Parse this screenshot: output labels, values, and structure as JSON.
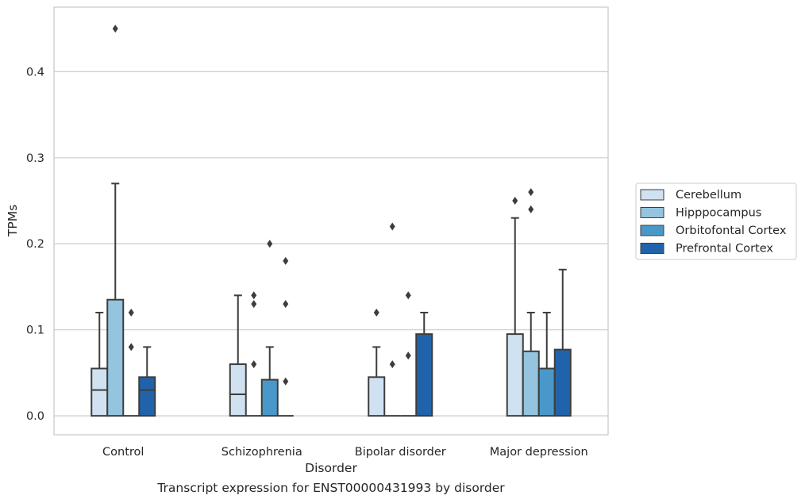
{
  "chart_data": {
    "type": "box",
    "title": "",
    "xlabel": "Disorder",
    "ylabel": "TPMs",
    "caption": "Transcript expression for ENST00000431993 by disorder",
    "ylim": [
      -0.022,
      0.475
    ],
    "yticks": [
      0.0,
      0.1,
      0.2,
      0.3,
      0.4
    ],
    "ytick_labels": [
      "0.0",
      "0.1",
      "0.2",
      "0.3",
      "0.4"
    ],
    "grid": "horizontal",
    "legend_position": "right",
    "categories": [
      "Control",
      "Schizophrenia",
      "Bipolar disorder",
      "Major depression"
    ],
    "series": [
      {
        "name": "Cerebellum",
        "color": "#d0e1f2",
        "boxes": [
          {
            "q1": 0.0,
            "median": 0.03,
            "q3": 0.055,
            "whisker_low": 0.0,
            "whisker_high": 0.12,
            "outliers": []
          },
          {
            "q1": 0.0,
            "median": 0.025,
            "q3": 0.06,
            "whisker_low": 0.0,
            "whisker_high": 0.14,
            "outliers": []
          },
          {
            "q1": 0.0,
            "median": 0.0,
            "q3": 0.045,
            "whisker_low": 0.0,
            "whisker_high": 0.08,
            "outliers": [
              0.12
            ]
          },
          {
            "q1": 0.0,
            "median": 0.0,
            "q3": 0.095,
            "whisker_low": 0.0,
            "whisker_high": 0.23,
            "outliers": [
              0.25
            ]
          }
        ]
      },
      {
        "name": "Hipppocampus",
        "color": "#94c4df",
        "boxes": [
          {
            "q1": 0.0,
            "median": 0.0,
            "q3": 0.135,
            "whisker_low": 0.0,
            "whisker_high": 0.27,
            "outliers": [
              0.45
            ]
          },
          {
            "q1": 0.0,
            "median": 0.0,
            "q3": 0.0,
            "whisker_low": 0.0,
            "whisker_high": 0.0,
            "outliers": [
              0.06,
              0.13,
              0.14
            ]
          },
          {
            "q1": 0.0,
            "median": 0.0,
            "q3": 0.0,
            "whisker_low": 0.0,
            "whisker_high": 0.0,
            "outliers": [
              0.06,
              0.22
            ]
          },
          {
            "q1": 0.0,
            "median": 0.0,
            "q3": 0.075,
            "whisker_low": 0.0,
            "whisker_high": 0.12,
            "outliers": [
              0.24,
              0.26
            ]
          }
        ]
      },
      {
        "name": "Orbitofontal Cortex",
        "color": "#4a98c9",
        "boxes": [
          {
            "q1": 0.0,
            "median": 0.0,
            "q3": 0.0,
            "whisker_low": 0.0,
            "whisker_high": 0.0,
            "outliers": [
              0.08,
              0.12
            ]
          },
          {
            "q1": 0.0,
            "median": 0.0,
            "q3": 0.042,
            "whisker_low": 0.0,
            "whisker_high": 0.08,
            "outliers": [
              0.2
            ]
          },
          {
            "q1": 0.0,
            "median": 0.0,
            "q3": 0.0,
            "whisker_low": 0.0,
            "whisker_high": 0.0,
            "outliers": [
              0.07,
              0.14
            ]
          },
          {
            "q1": 0.0,
            "median": 0.0,
            "q3": 0.055,
            "whisker_low": 0.0,
            "whisker_high": 0.12,
            "outliers": []
          }
        ]
      },
      {
        "name": "Prefrontal Cortex",
        "color": "#2163aa",
        "boxes": [
          {
            "q1": 0.0,
            "median": 0.03,
            "q3": 0.045,
            "whisker_low": 0.0,
            "whisker_high": 0.08,
            "outliers": []
          },
          {
            "q1": 0.0,
            "median": 0.0,
            "q3": 0.0,
            "whisker_low": 0.0,
            "whisker_high": 0.0,
            "outliers": [
              0.04,
              0.13,
              0.18
            ]
          },
          {
            "q1": 0.0,
            "median": 0.0,
            "q3": 0.095,
            "whisker_low": 0.0,
            "whisker_high": 0.12,
            "outliers": []
          },
          {
            "q1": 0.0,
            "median": 0.0,
            "q3": 0.077,
            "whisker_low": 0.0,
            "whisker_high": 0.17,
            "outliers": []
          }
        ]
      }
    ]
  }
}
